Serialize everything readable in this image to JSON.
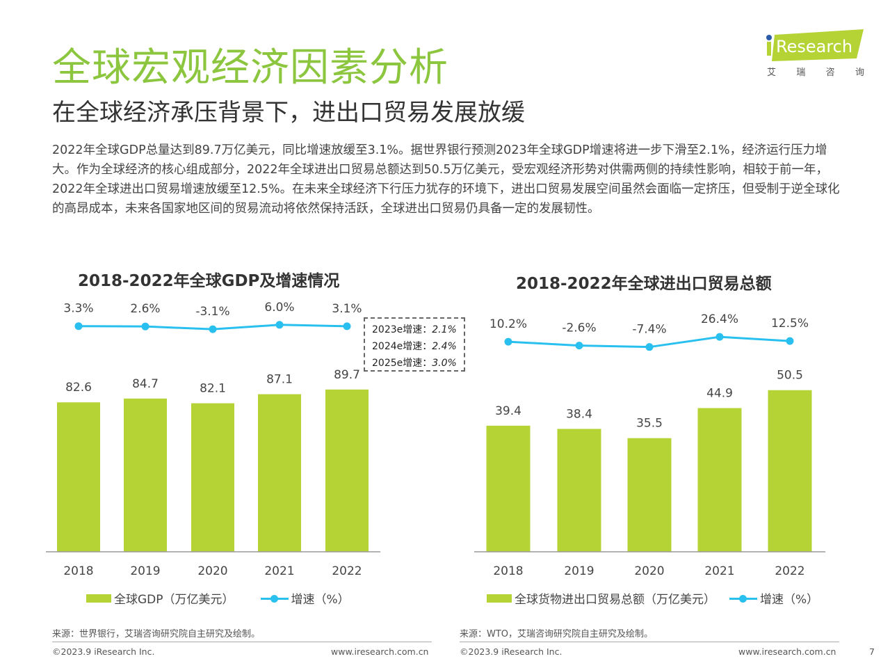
{
  "header": {
    "title": "全球宏观经济因素分析",
    "subtitle": "在全球经济承压背景下，进出口贸易发展放缓",
    "logo_text": "iResearch",
    "logo_cn": [
      "艾",
      "瑞",
      "咨",
      "询"
    ]
  },
  "body_text": "2022年全球GDP总量达到89.7万亿美元，同比增速放缓至3.1%。据世界银行预测2023年全球GDP增速将进一步下滑至2.1%，经济运行压力增大。作为全球经济的核心组成部分，2022年全球进出口贸易总额达到50.5万亿美元，受宏观经济形势对供需两侧的持续性影响，相较于前一年，2022年全球进出口贸易增速放缓至12.5%。在未来全球经济下行压力犹存的环境下，进出口贸易发展空间虽然会面临一定挤压，但受制于逆全球化的高昂成本，未来各国家地区间的贸易流动将依然保持活跃，全球进出口贸易仍具备一定的发展韧性。",
  "colors": {
    "bar": "#b5d334",
    "line": "#29c0ef",
    "title": "#8cc63f"
  },
  "chart_data": [
    {
      "type": "bar+line",
      "title": "2018-2022年全球GDP及增速情况",
      "categories": [
        "2018",
        "2019",
        "2020",
        "2021",
        "2022"
      ],
      "series": [
        {
          "name": "全球GDP（万亿美元）",
          "type": "bar",
          "values": [
            82.6,
            84.7,
            82.1,
            87.1,
            89.7
          ],
          "labels": [
            "82.6",
            "84.7",
            "82.1",
            "87.1",
            "89.7"
          ]
        },
        {
          "name": "增速（%）",
          "type": "line",
          "values": [
            3.3,
            2.6,
            -3.1,
            6.0,
            3.1
          ],
          "labels": [
            "3.3%",
            "2.6%",
            "-3.1%",
            "6.0%",
            "3.1%"
          ]
        }
      ],
      "annotation": [
        {
          "label": "2023e增速：",
          "value": "2.1%"
        },
        {
          "label": "2024e增速：",
          "value": "2.4%"
        },
        {
          "label": "2025e增速：",
          "value": "3.0%"
        }
      ],
      "source": "来源：世界银行，艾瑞咨询研究院自主研究及绘制。"
    },
    {
      "type": "bar+line",
      "title": "2018-2022年全球进出口贸易总额",
      "categories": [
        "2018",
        "2019",
        "2020",
        "2021",
        "2022"
      ],
      "series": [
        {
          "name": "全球货物进出口贸易总额（万亿美元）",
          "type": "bar",
          "values": [
            39.4,
            38.4,
            35.5,
            44.9,
            50.5
          ],
          "labels": [
            "39.4",
            "38.4",
            "35.5",
            "44.9",
            "50.5"
          ]
        },
        {
          "name": "增速（%）",
          "type": "line",
          "values": [
            10.2,
            -2.6,
            -7.4,
            26.4,
            12.5
          ],
          "labels": [
            "10.2%",
            "-2.6%",
            "-7.4%",
            "26.4%",
            "12.5%"
          ]
        }
      ],
      "source": "来源：WTO，艾瑞咨询研究院自主研究及绘制。"
    }
  ],
  "footer": {
    "copyright": "©2023.9 iResearch Inc.",
    "url": "www.iresearch.com.cn",
    "page": "7"
  }
}
